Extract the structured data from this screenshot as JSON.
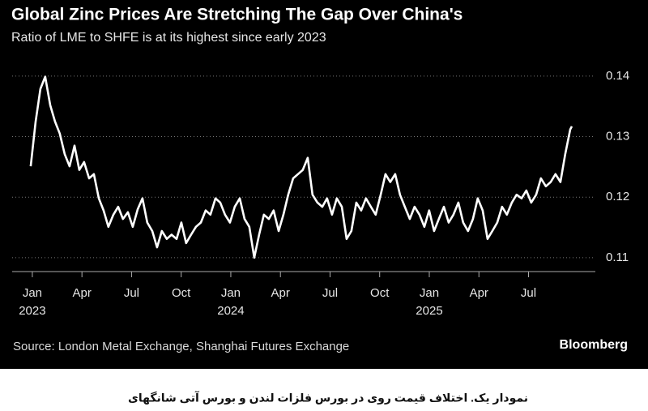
{
  "chart_data": {
    "type": "line",
    "title": "Global Zinc Prices Are Stretching The Gap Over China's",
    "subtitle": "Ratio of LME to SHFE is at its highest since early 2023",
    "source": "Source: London Metal Exchange, Shanghai Futures Exchange",
    "credit": "Bloomberg",
    "x": [
      -0.1,
      0.2,
      0.49,
      0.78,
      1.08,
      1.37,
      1.66,
      1.96,
      2.25,
      2.55,
      2.84,
      3.13,
      3.43,
      3.72,
      4.02,
      4.31,
      4.6,
      4.9,
      5.19,
      5.48,
      5.78,
      6.07,
      6.37,
      6.66,
      6.95,
      7.25,
      7.54,
      7.83,
      8.13,
      8.42,
      8.72,
      9.01,
      9.3,
      9.6,
      9.89,
      10.19,
      10.48,
      10.77,
      11.07,
      11.36,
      11.65,
      11.95,
      12.24,
      12.54,
      12.83,
      13.12,
      13.42,
      13.71,
      14.0,
      14.3,
      14.59,
      14.89,
      15.18,
      15.47,
      15.77,
      16.06,
      16.35,
      16.65,
      16.94,
      17.24,
      17.53,
      17.82,
      18.12,
      18.41,
      18.71,
      19.0,
      19.29,
      19.59,
      19.88,
      20.17,
      20.47,
      20.76,
      21.06,
      21.35,
      21.64,
      21.94,
      22.23,
      22.52,
      22.82,
      23.11,
      23.41,
      23.7,
      23.99,
      24.29,
      24.58,
      24.88,
      25.17,
      25.46,
      25.76,
      26.05,
      26.34,
      26.64,
      26.93,
      27.23,
      27.52,
      27.81,
      28.11,
      28.4,
      28.69,
      28.99,
      29.28,
      29.58,
      29.87,
      30.16,
      30.46,
      30.75,
      31.05,
      31.34,
      31.63,
      31.93,
      32.22,
      32.52,
      32.62
    ],
    "series": [
      {
        "color": "#ffffff",
        "values": [
          0.1251,
          0.1325,
          0.1379,
          0.1399,
          0.1352,
          0.1325,
          0.1305,
          0.1271,
          0.1251,
          0.1285,
          0.1245,
          0.1258,
          0.1231,
          0.1238,
          0.1198,
          0.1178,
          0.1151,
          0.1171,
          0.1184,
          0.1164,
          0.1175,
          0.1151,
          0.118,
          0.1198,
          0.1158,
          0.1144,
          0.1117,
          0.1144,
          0.1131,
          0.1138,
          0.1131,
          0.1158,
          0.1124,
          0.1138,
          0.1151,
          0.1158,
          0.1178,
          0.1171,
          0.1198,
          0.1191,
          0.1171,
          0.1158,
          0.1184,
          0.1198,
          0.1164,
          0.1151,
          0.11,
          0.1138,
          0.1171,
          0.1164,
          0.1178,
          0.1144,
          0.1171,
          0.1204,
          0.1231,
          0.1238,
          0.1245,
          0.1265,
          0.1204,
          0.1191,
          0.1184,
          0.1198,
          0.1171,
          0.1198,
          0.1184,
          0.1131,
          0.1144,
          0.1191,
          0.1178,
          0.1198,
          0.1184,
          0.1171,
          0.1204,
          0.1238,
          0.1225,
          0.1238,
          0.1204,
          0.1184,
          0.1164,
          0.1184,
          0.1171,
          0.1151,
          0.1178,
          0.1144,
          0.1164,
          0.1184,
          0.1158,
          0.1171,
          0.1191,
          0.1158,
          0.1144,
          0.1164,
          0.1198,
          0.1178,
          0.1131,
          0.1144,
          0.1158,
          0.1184,
          0.1171,
          0.1191,
          0.1204,
          0.1198,
          0.1211,
          0.1191,
          0.1204,
          0.1231,
          0.1218,
          0.1225,
          0.1238,
          0.1225,
          0.1271,
          0.1312,
          0.1317
        ]
      }
    ],
    "xlim": [
      -1.22,
      34.04
    ],
    "xticks": [
      {
        "value": 0,
        "label": "Jan"
      },
      {
        "value": 3,
        "label": "Apr"
      },
      {
        "value": 6,
        "label": "Jul"
      },
      {
        "value": 9,
        "label": "Oct"
      },
      {
        "value": 12,
        "label": "Jan"
      },
      {
        "value": 15,
        "label": "Apr"
      },
      {
        "value": 18,
        "label": "Jul"
      },
      {
        "value": 21,
        "label": "Oct"
      },
      {
        "value": 24,
        "label": "Jan"
      },
      {
        "value": 27,
        "label": "Apr"
      },
      {
        "value": 30,
        "label": "Jul"
      }
    ],
    "xtick_years": [
      {
        "value": 0,
        "label": "2023"
      },
      {
        "value": 12,
        "label": "2024"
      },
      {
        "value": 24,
        "label": "2025"
      }
    ],
    "ylim": [
      0.1077,
      0.1428
    ],
    "yticks": [
      0.11,
      0.12,
      0.13,
      0.14
    ],
    "grid": true
  },
  "caption": "نمودار یک. اختلاف قیمت روی در بورس فلزات لندن و بورس آتی شانگهای"
}
